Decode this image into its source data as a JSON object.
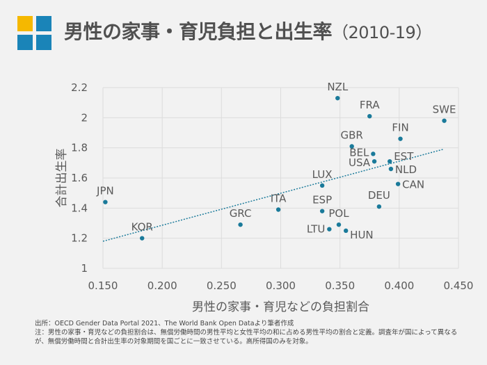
{
  "header": {
    "title": "男性の家事・育児負担と出生率",
    "subtitle": "（2010-19）",
    "logo_colors": [
      "#f5b800",
      "#1a84b8",
      "#1a84b8",
      "#1a84b8"
    ]
  },
  "chart_data": {
    "type": "scatter",
    "title": "男性の家事・育児負担と出生率（2010-19）",
    "xlabel": "男性の家事・育児などの負担割合",
    "ylabel": "合計出生率",
    "xlim": [
      0.15,
      0.45
    ],
    "ylim": [
      1,
      2.2
    ],
    "xticks": [
      "0.150",
      "0.200",
      "0.250",
      "0.300",
      "0.350",
      "0.400",
      "0.450"
    ],
    "yticks": [
      "1",
      "1.2",
      "1.4",
      "1.6",
      "1.8",
      "2",
      "2.2"
    ],
    "grid": true,
    "point_color": "#1a7a9a",
    "trendline": {
      "style": "dotted",
      "color": "#1a7a9a",
      "x": [
        0.15,
        0.437
      ],
      "y": [
        1.18,
        1.79
      ]
    },
    "points": [
      {
        "label": "NZL",
        "x": 0.348,
        "y": 2.13
      },
      {
        "label": "FRA",
        "x": 0.375,
        "y": 2.01
      },
      {
        "label": "SWE",
        "x": 0.438,
        "y": 1.98
      },
      {
        "label": "FIN",
        "x": 0.401,
        "y": 1.86
      },
      {
        "label": "GBR",
        "x": 0.36,
        "y": 1.81
      },
      {
        "label": "BEL",
        "x": 0.378,
        "y": 1.76
      },
      {
        "label": "USA",
        "x": 0.379,
        "y": 1.71
      },
      {
        "label": "EST",
        "x": 0.392,
        "y": 1.71
      },
      {
        "label": "NLD",
        "x": 0.393,
        "y": 1.66
      },
      {
        "label": "CAN",
        "x": 0.399,
        "y": 1.56
      },
      {
        "label": "LUX",
        "x": 0.335,
        "y": 1.55
      },
      {
        "label": "DEU",
        "x": 0.383,
        "y": 1.41
      },
      {
        "label": "ESP",
        "x": 0.335,
        "y": 1.38
      },
      {
        "label": "POL",
        "x": 0.349,
        "y": 1.29
      },
      {
        "label": "LTU",
        "x": 0.341,
        "y": 1.26
      },
      {
        "label": "HUN",
        "x": 0.355,
        "y": 1.25
      },
      {
        "label": "JPN",
        "x": 0.152,
        "y": 1.44
      },
      {
        "label": "KOR",
        "x": 0.183,
        "y": 1.2
      },
      {
        "label": "GRC",
        "x": 0.266,
        "y": 1.29
      },
      {
        "label": "ITA",
        "x": 0.298,
        "y": 1.39
      }
    ]
  },
  "notes": {
    "source": "出所：OECD Gender Data Portal 2021、The World Bank Open Dataより筆者作成",
    "note": "注：男性の家事・育児などの負担割合は、無償労働時間の男性平均と女性平均の和に占める男性平均の割合と定義。調査年が国によって異なるが、無償労働時間と合計出生率の対象期間を国ごとに一致させている。高所得国のみを対象。"
  }
}
